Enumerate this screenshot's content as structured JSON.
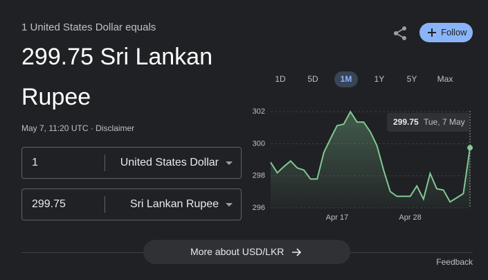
{
  "header": {
    "label": "1 United States Dollar equals",
    "result": "299.75 Sri Lankan Rupee",
    "meta": "May 7, 11:20 UTC · Disclaimer"
  },
  "actions": {
    "follow": "Follow"
  },
  "converter": {
    "rows": [
      {
        "amount": "1",
        "currency": "United States Dollar"
      },
      {
        "amount": "299.75",
        "currency": "Sri Lankan Rupee"
      }
    ]
  },
  "tabs": {
    "items": [
      "1D",
      "5D",
      "1M",
      "1Y",
      "5Y",
      "Max"
    ],
    "selected": 2
  },
  "chart_data": {
    "type": "line",
    "categories": [
      null,
      null,
      null,
      null,
      null,
      null,
      null,
      null,
      null,
      null,
      "Apr 17",
      null,
      null,
      null,
      null,
      null,
      null,
      null,
      null,
      null,
      null,
      "Apr 28",
      null,
      null,
      null,
      null,
      null,
      null,
      null,
      null,
      null
    ],
    "values": [
      298.84,
      298.19,
      298.58,
      298.93,
      298.49,
      298.36,
      297.8,
      297.8,
      299.45,
      300.31,
      301.13,
      301.22,
      302.0,
      301.35,
      301.35,
      300.74,
      299.88,
      298.36,
      297.02,
      296.72,
      296.72,
      296.72,
      297.37,
      296.55,
      298.15,
      297.19,
      297.11,
      296.37,
      296.63,
      296.89,
      299.75
    ],
    "color": "#81c995",
    "ylim": [
      296,
      302.4
    ],
    "yticks": [
      296,
      298,
      300,
      302
    ],
    "grid": true,
    "tooltip_label": "Tue, 7 May"
  },
  "footer": {
    "more": "More about USD/LKR",
    "feedback": "Feedback"
  }
}
